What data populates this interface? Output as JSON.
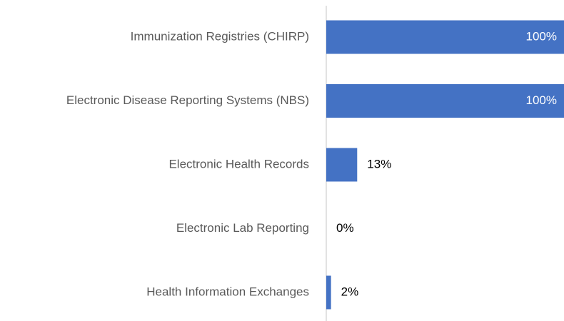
{
  "chart_data": {
    "type": "bar",
    "orientation": "horizontal",
    "categories": [
      "Immunization Registries (CHIRP)",
      "Electronic Disease Reporting Systems (NBS)",
      "Electronic Health Records",
      "Electronic Lab Reporting",
      "Health Information Exchanges"
    ],
    "values": [
      100,
      100,
      13,
      0,
      2
    ],
    "value_labels": [
      "100%",
      "100%",
      "13%",
      "0%",
      "2%"
    ],
    "color": "#4472c4",
    "xlim": [
      0,
      100
    ]
  }
}
